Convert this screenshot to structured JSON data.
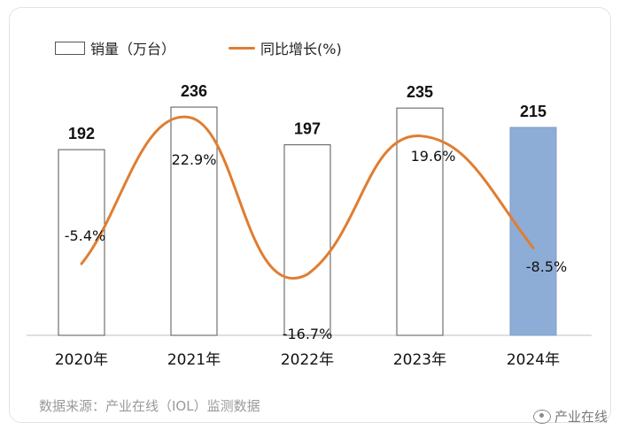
{
  "legend": {
    "bar_label": "销量（万台）",
    "line_label": "同比增长(%)"
  },
  "source_text": "数据来源：产业在线（IOL）监测数据",
  "brand_text": "产业在线",
  "colors": {
    "bar_outline": "#555555",
    "bar_fill": "#ffffff",
    "highlight_fill": "#8eadd6",
    "line": "#e07d31"
  },
  "chart_data": {
    "type": "bar",
    "categories": [
      "2020年",
      "2021年",
      "2022年",
      "2023年",
      "2024年"
    ],
    "series": [
      {
        "name": "销量（万台）",
        "type": "bar",
        "values": [
          192,
          236,
          197,
          235,
          215
        ],
        "highlight_index": 4
      },
      {
        "name": "同比增长(%)",
        "type": "line",
        "smooth": true,
        "values": [
          -5.4,
          22.9,
          -16.7,
          19.6,
          -8.5
        ],
        "value_labels": [
          "-5.4%",
          "22.9%",
          "-16.7%",
          "19.6%",
          "-8.5%"
        ]
      }
    ],
    "value_labels": [
      "192",
      "236",
      "197",
      "235",
      "215"
    ],
    "xlabel": "",
    "ylabel": ""
  }
}
